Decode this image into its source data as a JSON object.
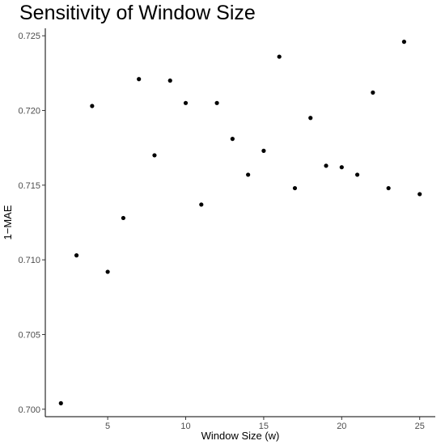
{
  "chart_data": {
    "type": "scatter",
    "title": "Sensitivity of Window Size",
    "xlabel": "Window Size (w)",
    "ylabel": "1−MAE",
    "xlim": [
      1.0,
      26.0
    ],
    "ylim": [
      0.6995,
      0.7255
    ],
    "x_ticks": [
      5,
      10,
      15,
      20,
      25
    ],
    "y_ticks": [
      0.7,
      0.705,
      0.71,
      0.715,
      0.72,
      0.725
    ],
    "y_tick_labels": [
      "0.700",
      "0.705",
      "0.710",
      "0.715",
      "0.720",
      "0.725"
    ],
    "grid": false,
    "point_color": "#000000",
    "x": [
      2,
      3,
      4,
      5,
      6,
      7,
      8,
      9,
      10,
      11,
      12,
      13,
      14,
      15,
      16,
      17,
      18,
      19,
      20,
      21,
      22,
      23,
      24,
      25
    ],
    "y": [
      0.7004,
      0.7103,
      0.7203,
      0.7092,
      0.7128,
      0.7221,
      0.717,
      0.722,
      0.7205,
      0.7137,
      0.7205,
      0.7181,
      0.7157,
      0.7173,
      0.7236,
      0.7148,
      0.7195,
      0.7163,
      0.7162,
      0.7157,
      0.7212,
      0.7148,
      0.7246,
      0.7144
    ]
  }
}
